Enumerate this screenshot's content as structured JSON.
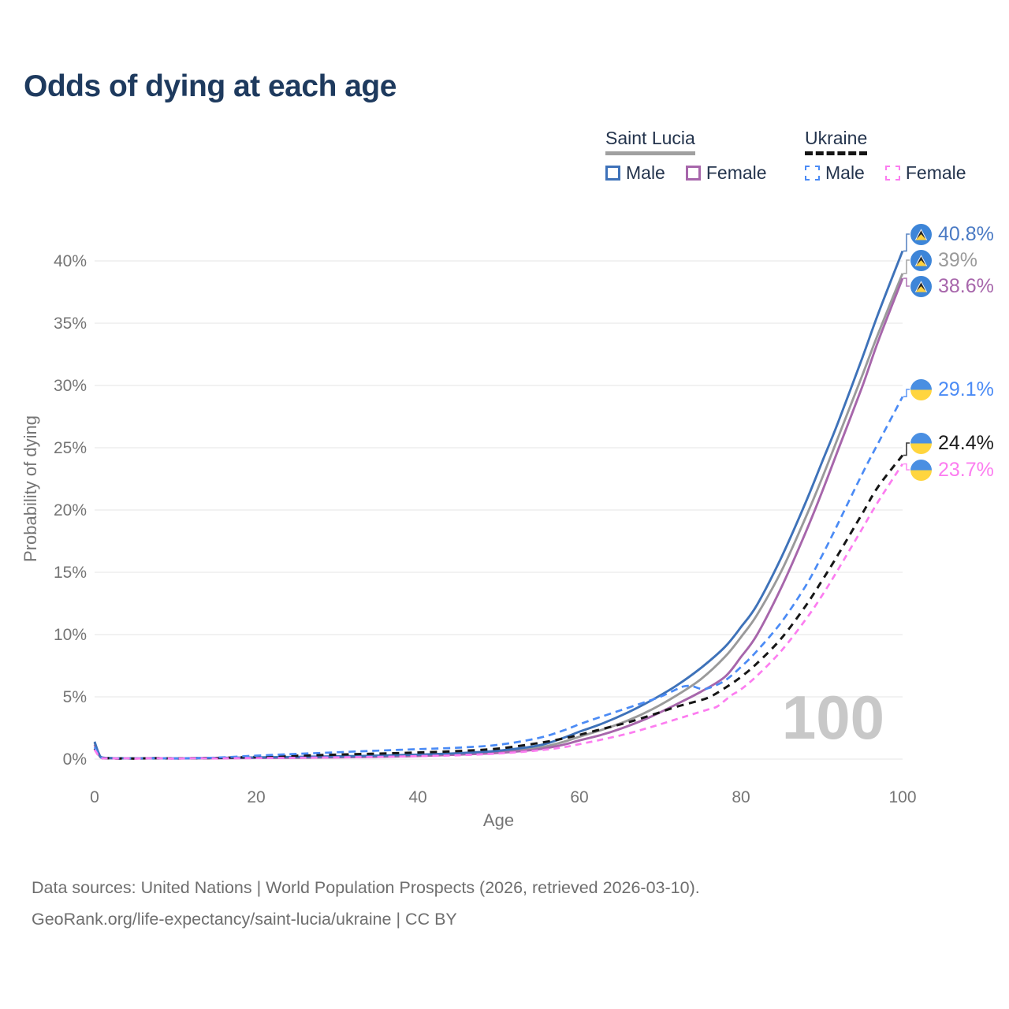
{
  "title": "Odds of dying at each age",
  "legend": {
    "groups": [
      {
        "label": "Saint Lucia",
        "line_style": "solid",
        "rule_color": "#a0a0a0",
        "items": [
          {
            "label": "Male",
            "color": "#3e72b9",
            "dashed": false
          },
          {
            "label": "Female",
            "color": "#a766ab",
            "dashed": false
          }
        ]
      },
      {
        "label": "Ukraine",
        "line_style": "dashed",
        "rule_color": "#141414",
        "items": [
          {
            "label": "Male",
            "color": "#4b8bf5",
            "dashed": true
          },
          {
            "label": "Female",
            "color": "#fc7df0",
            "dashed": true
          }
        ]
      }
    ]
  },
  "chart_data": {
    "type": "line",
    "title": "Odds of dying at each age",
    "xlabel": "Age",
    "ylabel": "Probability of dying",
    "xlim": [
      0,
      100
    ],
    "ylim_pct": [
      0,
      42
    ],
    "grid": "horizontal",
    "hovered_age_label": "100",
    "x_ticks": [
      {
        "v": 0,
        "label": "0"
      },
      {
        "v": 20,
        "label": "20"
      },
      {
        "v": 40,
        "label": "40"
      },
      {
        "v": 60,
        "label": "60"
      },
      {
        "v": 80,
        "label": "80"
      },
      {
        "v": 100,
        "label": "100"
      }
    ],
    "y_ticks": [
      {
        "v": 0,
        "label": "0%"
      },
      {
        "v": 5,
        "label": "5%"
      },
      {
        "v": 10,
        "label": "10%"
      },
      {
        "v": 15,
        "label": "15%"
      },
      {
        "v": 20,
        "label": "20%"
      },
      {
        "v": 25,
        "label": "25%"
      },
      {
        "v": 30,
        "label": "30%"
      },
      {
        "v": 35,
        "label": "35%"
      },
      {
        "v": 40,
        "label": "40%"
      }
    ],
    "series": [
      {
        "id": "slm",
        "name": "Saint Lucia Male",
        "country": "Saint Lucia",
        "sex": "male",
        "color": "#3e72b9",
        "label_color": "#4a7ac4",
        "dash": null,
        "end_label": "40.8%",
        "end_value_pct": 40.8,
        "points_age_pct": [
          [
            0,
            1.4
          ],
          [
            0.5,
            0.5
          ],
          [
            1,
            0.12
          ],
          [
            3,
            0.07
          ],
          [
            5,
            0.06
          ],
          [
            10,
            0.06
          ],
          [
            15,
            0.1
          ],
          [
            20,
            0.14
          ],
          [
            25,
            0.18
          ],
          [
            30,
            0.22
          ],
          [
            35,
            0.28
          ],
          [
            40,
            0.36
          ],
          [
            45,
            0.48
          ],
          [
            50,
            0.68
          ],
          [
            55,
            1.1
          ],
          [
            58,
            1.7
          ],
          [
            60,
            2.2
          ],
          [
            63,
            2.9
          ],
          [
            66,
            3.75
          ],
          [
            69,
            4.75
          ],
          [
            72,
            5.9
          ],
          [
            75,
            7.3
          ],
          [
            78,
            9.0
          ],
          [
            80,
            10.6
          ],
          [
            82,
            12.4
          ],
          [
            85,
            16.2
          ],
          [
            88,
            20.6
          ],
          [
            90,
            23.8
          ],
          [
            92,
            27.0
          ],
          [
            95,
            32.2
          ],
          [
            97,
            35.8
          ],
          [
            100,
            40.8
          ]
        ]
      },
      {
        "id": "slt",
        "name": "Saint Lucia Both sexes",
        "country": "Saint Lucia",
        "sex": "both",
        "color": "#9a9a9a",
        "label_color": "#9a9a9a",
        "dash": null,
        "end_label": "39%",
        "end_value_pct": 39.0,
        "points_age_pct": [
          [
            0,
            1.3
          ],
          [
            0.5,
            0.45
          ],
          [
            1,
            0.1
          ],
          [
            3,
            0.06
          ],
          [
            5,
            0.05
          ],
          [
            10,
            0.05
          ],
          [
            15,
            0.08
          ],
          [
            20,
            0.11
          ],
          [
            25,
            0.14
          ],
          [
            30,
            0.18
          ],
          [
            35,
            0.23
          ],
          [
            40,
            0.3
          ],
          [
            45,
            0.42
          ],
          [
            50,
            0.58
          ],
          [
            55,
            0.92
          ],
          [
            58,
            1.38
          ],
          [
            60,
            1.8
          ],
          [
            63,
            2.4
          ],
          [
            66,
            3.1
          ],
          [
            69,
            4.0
          ],
          [
            72,
            5.1
          ],
          [
            75,
            6.4
          ],
          [
            78,
            8.2
          ],
          [
            80,
            9.8
          ],
          [
            82,
            11.6
          ],
          [
            85,
            15.1
          ],
          [
            88,
            19.4
          ],
          [
            90,
            22.5
          ],
          [
            92,
            25.8
          ],
          [
            95,
            30.8
          ],
          [
            97,
            34.2
          ],
          [
            100,
            39.0
          ]
        ]
      },
      {
        "id": "slf",
        "name": "Saint Lucia Female",
        "country": "Saint Lucia",
        "sex": "female",
        "color": "#a766ab",
        "label_color": "#a766ab",
        "dash": null,
        "end_label": "38.6%",
        "end_value_pct": 38.6,
        "points_age_pct": [
          [
            0,
            1.15
          ],
          [
            0.5,
            0.4
          ],
          [
            1,
            0.09
          ],
          [
            3,
            0.05
          ],
          [
            5,
            0.05
          ],
          [
            10,
            0.05
          ],
          [
            15,
            0.07
          ],
          [
            20,
            0.09
          ],
          [
            25,
            0.11
          ],
          [
            30,
            0.14
          ],
          [
            35,
            0.18
          ],
          [
            40,
            0.25
          ],
          [
            45,
            0.36
          ],
          [
            50,
            0.5
          ],
          [
            55,
            0.8
          ],
          [
            58,
            1.15
          ],
          [
            60,
            1.5
          ],
          [
            63,
            2.0
          ],
          [
            66,
            2.65
          ],
          [
            69,
            3.45
          ],
          [
            72,
            4.4
          ],
          [
            75,
            5.4
          ],
          [
            78,
            6.6
          ],
          [
            80,
            8.2
          ],
          [
            82,
            10.0
          ],
          [
            85,
            13.8
          ],
          [
            88,
            18.2
          ],
          [
            90,
            21.4
          ],
          [
            92,
            24.8
          ],
          [
            95,
            29.9
          ],
          [
            97,
            33.6
          ],
          [
            100,
            38.6
          ]
        ]
      },
      {
        "id": "ukm",
        "name": "Ukraine Male",
        "country": "Ukraine",
        "sex": "male",
        "color": "#4b8bf5",
        "label_color": "#4b8bf5",
        "dash": [
          9,
          6
        ],
        "end_label": "29.1%",
        "end_value_pct": 29.1,
        "points_age_pct": [
          [
            0,
            0.95
          ],
          [
            0.5,
            0.35
          ],
          [
            1,
            0.08
          ],
          [
            3,
            0.05
          ],
          [
            5,
            0.05
          ],
          [
            10,
            0.06
          ],
          [
            15,
            0.12
          ],
          [
            20,
            0.28
          ],
          [
            25,
            0.42
          ],
          [
            30,
            0.55
          ],
          [
            35,
            0.68
          ],
          [
            40,
            0.8
          ],
          [
            45,
            0.92
          ],
          [
            50,
            1.15
          ],
          [
            55,
            1.7
          ],
          [
            58,
            2.3
          ],
          [
            60,
            2.8
          ],
          [
            62,
            3.25
          ],
          [
            65,
            3.9
          ],
          [
            68,
            4.55
          ],
          [
            70,
            5.0
          ],
          [
            72,
            5.6
          ],
          [
            73,
            5.85
          ],
          [
            74,
            5.85
          ],
          [
            75,
            5.65
          ],
          [
            76,
            5.7
          ],
          [
            78,
            6.3
          ],
          [
            80,
            7.4
          ],
          [
            82,
            8.7
          ],
          [
            85,
            11.0
          ],
          [
            88,
            13.9
          ],
          [
            90,
            16.3
          ],
          [
            92,
            18.9
          ],
          [
            95,
            22.9
          ],
          [
            97,
            25.4
          ],
          [
            100,
            29.1
          ]
        ]
      },
      {
        "id": "ukt",
        "name": "Ukraine Both sexes",
        "country": "Ukraine",
        "sex": "both",
        "color": "#161616",
        "label_color": "#1c1c1c",
        "dash": [
          9,
          7
        ],
        "end_label": "24.4%",
        "end_value_pct": 24.4,
        "points_age_pct": [
          [
            0,
            0.85
          ],
          [
            0.5,
            0.3
          ],
          [
            1,
            0.07
          ],
          [
            3,
            0.04
          ],
          [
            5,
            0.04
          ],
          [
            10,
            0.05
          ],
          [
            15,
            0.09
          ],
          [
            20,
            0.18
          ],
          [
            25,
            0.27
          ],
          [
            30,
            0.36
          ],
          [
            35,
            0.44
          ],
          [
            40,
            0.53
          ],
          [
            45,
            0.65
          ],
          [
            50,
            0.85
          ],
          [
            55,
            1.3
          ],
          [
            58,
            1.65
          ],
          [
            60,
            1.95
          ],
          [
            63,
            2.45
          ],
          [
            66,
            2.95
          ],
          [
            69,
            3.55
          ],
          [
            72,
            4.2
          ],
          [
            74,
            4.55
          ],
          [
            76,
            4.95
          ],
          [
            78,
            5.7
          ],
          [
            80,
            6.6
          ],
          [
            82,
            7.7
          ],
          [
            85,
            9.7
          ],
          [
            88,
            12.3
          ],
          [
            90,
            14.3
          ],
          [
            92,
            16.4
          ],
          [
            95,
            19.7
          ],
          [
            97,
            21.9
          ],
          [
            100,
            24.4
          ]
        ]
      },
      {
        "id": "ukf",
        "name": "Ukraine Female",
        "country": "Ukraine",
        "sex": "female",
        "color": "#fc7df0",
        "label_color": "#fc7df0",
        "dash": [
          8,
          6
        ],
        "end_label": "23.7%",
        "end_value_pct": 23.7,
        "points_age_pct": [
          [
            0,
            0.75
          ],
          [
            0.5,
            0.28
          ],
          [
            1,
            0.06
          ],
          [
            3,
            0.04
          ],
          [
            5,
            0.04
          ],
          [
            10,
            0.04
          ],
          [
            15,
            0.06
          ],
          [
            20,
            0.08
          ],
          [
            25,
            0.11
          ],
          [
            30,
            0.14
          ],
          [
            35,
            0.18
          ],
          [
            40,
            0.24
          ],
          [
            45,
            0.31
          ],
          [
            50,
            0.45
          ],
          [
            55,
            0.7
          ],
          [
            58,
            0.95
          ],
          [
            60,
            1.2
          ],
          [
            63,
            1.6
          ],
          [
            66,
            2.05
          ],
          [
            69,
            2.6
          ],
          [
            72,
            3.2
          ],
          [
            74,
            3.6
          ],
          [
            76,
            4.0
          ],
          [
            77,
            4.2
          ],
          [
            78,
            4.7
          ],
          [
            79,
            5.2
          ],
          [
            80,
            5.6
          ],
          [
            82,
            6.7
          ],
          [
            85,
            8.7
          ],
          [
            88,
            11.2
          ],
          [
            90,
            13.1
          ],
          [
            92,
            15.2
          ],
          [
            95,
            18.5
          ],
          [
            97,
            20.7
          ],
          [
            100,
            23.7
          ]
        ]
      }
    ]
  },
  "footer": {
    "line1": "Data sources: United Nations | World Population Prospects (2026, retrieved 2026-03-10).",
    "line2": "GeoRank.org/life-expectancy/saint-lucia/ukraine | CC BY"
  }
}
